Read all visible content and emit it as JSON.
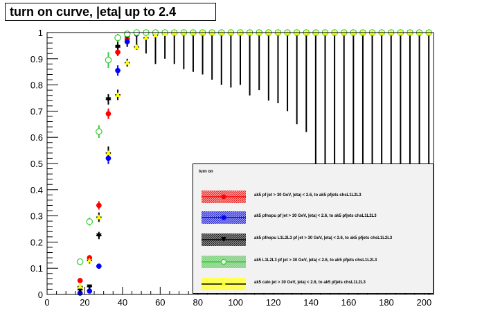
{
  "title": "turn on curve, |eta| up to 2.4",
  "legend_header": "turn on",
  "chart_data": {
    "type": "scatter",
    "title": "turn on curve, |eta| up to 2.4",
    "xlim": [
      0,
      205
    ],
    "ylim": [
      0,
      1.0
    ],
    "x_ticks": [
      "0",
      "20",
      "40",
      "60",
      "80",
      "100",
      "120",
      "140",
      "160",
      "180",
      "200"
    ],
    "y_ticks": [
      "0",
      "0.1",
      "0.2",
      "0.3",
      "0.4",
      "0.5",
      "0.6",
      "0.7",
      "0.8",
      "0.9",
      "1"
    ],
    "grid": false,
    "legend_position": "bottom-right",
    "series": [
      {
        "name": "ak5 pf jet > 30 GeV, |eta| < 2.6, to ak5 pfjets chsL1L2L3",
        "color": "#ff0000",
        "marker": "circle",
        "points": [
          [
            17.5,
            0.053
          ],
          [
            22.5,
            0.14
          ],
          [
            27.5,
            0.34
          ],
          [
            32.5,
            0.69
          ],
          [
            37.5,
            0.925
          ],
          [
            42.5,
            0.975
          ],
          [
            47.5,
            0.995
          ],
          [
            52.5,
            1.0
          ],
          [
            57.5,
            1.0
          ],
          [
            62.5,
            1.0
          ],
          [
            67.5,
            1.0
          ],
          [
            72.5,
            1.0
          ],
          [
            77.5,
            1.0
          ],
          [
            82.5,
            1.0
          ],
          [
            87.5,
            1.0
          ],
          [
            92.5,
            1.0
          ],
          [
            97.5,
            1.0
          ],
          [
            102.5,
            1.0
          ],
          [
            107.5,
            1.0
          ],
          [
            112.5,
            1.0
          ],
          [
            117.5,
            1.0
          ],
          [
            122.5,
            1.0
          ],
          [
            127.5,
            1.0
          ],
          [
            132.5,
            1.0
          ],
          [
            137.5,
            1.0
          ],
          [
            142.5,
            1.0
          ],
          [
            147.5,
            1.0
          ],
          [
            152.5,
            1.0
          ],
          [
            157.5,
            1.0
          ],
          [
            162.5,
            1.0
          ],
          [
            167.5,
            1.0
          ],
          [
            172.5,
            1.0
          ],
          [
            177.5,
            1.0
          ],
          [
            182.5,
            1.0
          ],
          [
            187.5,
            1.0
          ],
          [
            192.5,
            1.0
          ],
          [
            197.5,
            1.0
          ],
          [
            202.5,
            1.0
          ]
        ],
        "err": [
          0.008,
          0.01,
          0.016,
          0.02,
          0.015,
          0.01,
          0.005,
          0.004,
          0.004,
          0.004,
          0.004,
          0.004,
          0.004,
          0.004,
          0.004,
          0.004,
          0.004,
          0.004,
          0.004,
          0.004,
          0.004,
          0.004,
          0.004,
          0.004,
          0.004,
          0.004,
          0.004,
          0.004,
          0.004,
          0.004,
          0.004,
          0.004,
          0.004,
          0.004,
          0.004,
          0.004,
          0.004,
          0.004
        ]
      },
      {
        "name": "ak5 pfnopu pf jet > 30 GeV, |eta| < 2.6, to ak5 pfjets chsL1L2L3",
        "color": "#0000ff",
        "marker": "circle",
        "points": [
          [
            17.5,
            0.005
          ],
          [
            22.5,
            0.013
          ],
          [
            27.5,
            0.108
          ],
          [
            32.5,
            0.52
          ],
          [
            37.5,
            0.855
          ],
          [
            42.5,
            0.965
          ],
          [
            47.5,
            0.995
          ],
          [
            52.5,
            1.0
          ],
          [
            57.5,
            1.0
          ],
          [
            62.5,
            1.0
          ],
          [
            67.5,
            1.0
          ],
          [
            72.5,
            1.0
          ],
          [
            77.5,
            1.0
          ],
          [
            82.5,
            1.0
          ],
          [
            87.5,
            1.0
          ],
          [
            92.5,
            1.0
          ],
          [
            97.5,
            1.0
          ],
          [
            102.5,
            1.0
          ],
          [
            107.5,
            1.0
          ],
          [
            112.5,
            1.0
          ],
          [
            117.5,
            1.0
          ],
          [
            122.5,
            1.0
          ],
          [
            127.5,
            1.0
          ],
          [
            132.5,
            1.0
          ],
          [
            137.5,
            1.0
          ],
          [
            142.5,
            1.0
          ],
          [
            147.5,
            1.0
          ],
          [
            152.5,
            1.0
          ],
          [
            157.5,
            1.0
          ],
          [
            162.5,
            1.0
          ],
          [
            167.5,
            1.0
          ],
          [
            172.5,
            1.0
          ],
          [
            177.5,
            1.0
          ],
          [
            182.5,
            1.0
          ],
          [
            187.5,
            1.0
          ],
          [
            192.5,
            1.0
          ],
          [
            197.5,
            1.0
          ],
          [
            202.5,
            1.0
          ]
        ],
        "err": [
          0.003,
          0.005,
          0.01,
          0.022,
          0.02,
          0.012,
          0.005,
          0.004,
          0.004,
          0.004,
          0.004,
          0.004,
          0.004,
          0.004,
          0.004,
          0.004,
          0.004,
          0.004,
          0.004,
          0.004,
          0.004,
          0.004,
          0.004,
          0.004,
          0.004,
          0.004,
          0.004,
          0.004,
          0.004,
          0.004,
          0.004,
          0.004,
          0.004,
          0.004,
          0.004,
          0.004,
          0.004,
          0.004
        ]
      },
      {
        "name": "ak5 pfnopu L1L2L3 pf jet > 30 GeV, |eta| < 2.6, to ak5 pfjets chsL1L2L3",
        "color": "#000000",
        "marker": "triangle-down",
        "points": [
          [
            17.5,
            0.018
          ],
          [
            22.5,
            0.03
          ],
          [
            27.5,
            0.225
          ],
          [
            32.5,
            0.745
          ],
          [
            37.5,
            0.945
          ],
          [
            42.5,
            0.985
          ],
          [
            47.5,
            0.995
          ],
          [
            52.5,
            1.0
          ],
          [
            57.5,
            1.0
          ],
          [
            62.5,
            1.0
          ],
          [
            67.5,
            1.0
          ],
          [
            72.5,
            1.0
          ],
          [
            77.5,
            1.0
          ],
          [
            82.5,
            1.0
          ],
          [
            87.5,
            1.0
          ],
          [
            92.5,
            1.0
          ],
          [
            97.5,
            1.0
          ],
          [
            102.5,
            1.0
          ],
          [
            107.5,
            1.0
          ],
          [
            112.5,
            1.0
          ],
          [
            117.5,
            1.0
          ],
          [
            122.5,
            1.0
          ],
          [
            127.5,
            1.0
          ],
          [
            132.5,
            1.0
          ],
          [
            137.5,
            1.0
          ],
          [
            142.5,
            1.0
          ],
          [
            147.5,
            1.0
          ],
          [
            152.5,
            1.0
          ],
          [
            157.5,
            1.0
          ],
          [
            162.5,
            1.0
          ],
          [
            167.5,
            1.0
          ],
          [
            172.5,
            1.0
          ],
          [
            177.5,
            1.0
          ],
          [
            182.5,
            1.0
          ],
          [
            187.5,
            1.0
          ],
          [
            192.5,
            1.0
          ],
          [
            197.5,
            1.0
          ],
          [
            202.5,
            1.0
          ]
        ],
        "err_lo": [
          0.005,
          0.008,
          0.014,
          0.02,
          0.03,
          0.04,
          0.06,
          0.08,
          0.12,
          0.1,
          0.12,
          0.14,
          0.15,
          0.16,
          0.18,
          0.2,
          0.21,
          0.2,
          0.24,
          0.22,
          0.26,
          0.27,
          0.3,
          0.35,
          0.38,
          0.5,
          0.55,
          0.52,
          0.6,
          0.65,
          0.62,
          0.68,
          0.75,
          0.8,
          0.85,
          0.9,
          0.95,
          1.0
        ],
        "err_hi": [
          0.005,
          0.008,
          0.014,
          0.02,
          0.02,
          0.01,
          0.004,
          0.003,
          0.003,
          0.003,
          0.003,
          0.003,
          0.003,
          0.003,
          0.003,
          0.003,
          0.003,
          0.003,
          0.003,
          0.003,
          0.003,
          0.003,
          0.003,
          0.003,
          0.003,
          0.003,
          0.003,
          0.003,
          0.003,
          0.003,
          0.003,
          0.003,
          0.003,
          0.003,
          0.003,
          0.003,
          0.003,
          0.003
        ]
      },
      {
        "name": "ak5  L1L2L3 pf jet > 30 GeV, |eta| < 2.6, to ak5 pfjets chsL1L2L3",
        "color": "#33cc33",
        "marker": "open-circle",
        "points": [
          [
            17.5,
            0.125
          ],
          [
            22.5,
            0.278
          ],
          [
            27.5,
            0.622
          ],
          [
            32.5,
            0.895
          ],
          [
            37.5,
            0.98
          ],
          [
            42.5,
            0.995
          ],
          [
            47.5,
            1.0
          ],
          [
            52.5,
            1.0
          ],
          [
            57.5,
            1.0
          ],
          [
            62.5,
            1.0
          ],
          [
            67.5,
            1.0
          ],
          [
            72.5,
            1.0
          ],
          [
            77.5,
            1.0
          ],
          [
            82.5,
            1.0
          ],
          [
            87.5,
            1.0
          ],
          [
            92.5,
            1.0
          ],
          [
            97.5,
            1.0
          ],
          [
            102.5,
            1.0
          ],
          [
            107.5,
            1.0
          ],
          [
            112.5,
            1.0
          ],
          [
            117.5,
            1.0
          ],
          [
            122.5,
            1.0
          ],
          [
            127.5,
            1.0
          ],
          [
            132.5,
            1.0
          ],
          [
            137.5,
            1.0
          ],
          [
            142.5,
            1.0
          ],
          [
            147.5,
            1.0
          ],
          [
            152.5,
            1.0
          ],
          [
            157.5,
            1.0
          ],
          [
            162.5,
            1.0
          ],
          [
            167.5,
            1.0
          ],
          [
            172.5,
            1.0
          ],
          [
            177.5,
            1.0
          ],
          [
            182.5,
            1.0
          ],
          [
            187.5,
            1.0
          ],
          [
            192.5,
            1.0
          ],
          [
            197.5,
            1.0
          ],
          [
            202.5,
            1.0
          ]
        ],
        "err": [
          0.012,
          0.015,
          0.024,
          0.03,
          0.015,
          0.006,
          0.004,
          0.004,
          0.004,
          0.004,
          0.004,
          0.004,
          0.004,
          0.004,
          0.004,
          0.004,
          0.004,
          0.004,
          0.004,
          0.004,
          0.004,
          0.004,
          0.004,
          0.004,
          0.004,
          0.004,
          0.004,
          0.004,
          0.004,
          0.004,
          0.004,
          0.004,
          0.004,
          0.004,
          0.004,
          0.004,
          0.004,
          0.004
        ]
      },
      {
        "name": "ak5 calo jet > 30 GeV, |eta| < 2.6, to ak5 pfjets chsL1L2L3",
        "color": "#ffff00",
        "marker": "triangle-up",
        "points": [
          [
            17.5,
            0.03
          ],
          [
            22.5,
            0.13
          ],
          [
            27.5,
            0.295
          ],
          [
            32.5,
            0.54
          ],
          [
            37.5,
            0.762
          ],
          [
            42.5,
            0.885
          ],
          [
            47.5,
            0.945
          ],
          [
            52.5,
            0.98
          ],
          [
            57.5,
            0.99
          ],
          [
            62.5,
            0.995
          ],
          [
            67.5,
            0.998
          ],
          [
            72.5,
            1.0
          ],
          [
            77.5,
            1.0
          ],
          [
            82.5,
            1.0
          ],
          [
            87.5,
            1.0
          ],
          [
            92.5,
            1.0
          ],
          [
            97.5,
            1.0
          ],
          [
            102.5,
            1.0
          ],
          [
            107.5,
            1.0
          ],
          [
            112.5,
            1.0
          ],
          [
            117.5,
            1.0
          ],
          [
            122.5,
            1.0
          ],
          [
            127.5,
            1.0
          ],
          [
            132.5,
            1.0
          ],
          [
            137.5,
            1.0
          ],
          [
            142.5,
            1.0
          ],
          [
            147.5,
            1.0
          ],
          [
            152.5,
            1.0
          ],
          [
            157.5,
            1.0
          ],
          [
            162.5,
            1.0
          ],
          [
            167.5,
            1.0
          ],
          [
            172.5,
            1.0
          ],
          [
            177.5,
            1.0
          ],
          [
            182.5,
            1.0
          ],
          [
            187.5,
            1.0
          ],
          [
            192.5,
            1.0
          ],
          [
            197.5,
            1.0
          ],
          [
            202.5,
            1.0
          ]
        ],
        "err": [
          0.008,
          0.012,
          0.018,
          0.025,
          0.02,
          0.015,
          0.01,
          0.006,
          0.005,
          0.004,
          0.004,
          0.004,
          0.004,
          0.004,
          0.004,
          0.004,
          0.004,
          0.004,
          0.004,
          0.004,
          0.004,
          0.004,
          0.004,
          0.004,
          0.004,
          0.004,
          0.004,
          0.004,
          0.004,
          0.004,
          0.004,
          0.004,
          0.004,
          0.004,
          0.004,
          0.004,
          0.004,
          0.004
        ]
      }
    ]
  }
}
